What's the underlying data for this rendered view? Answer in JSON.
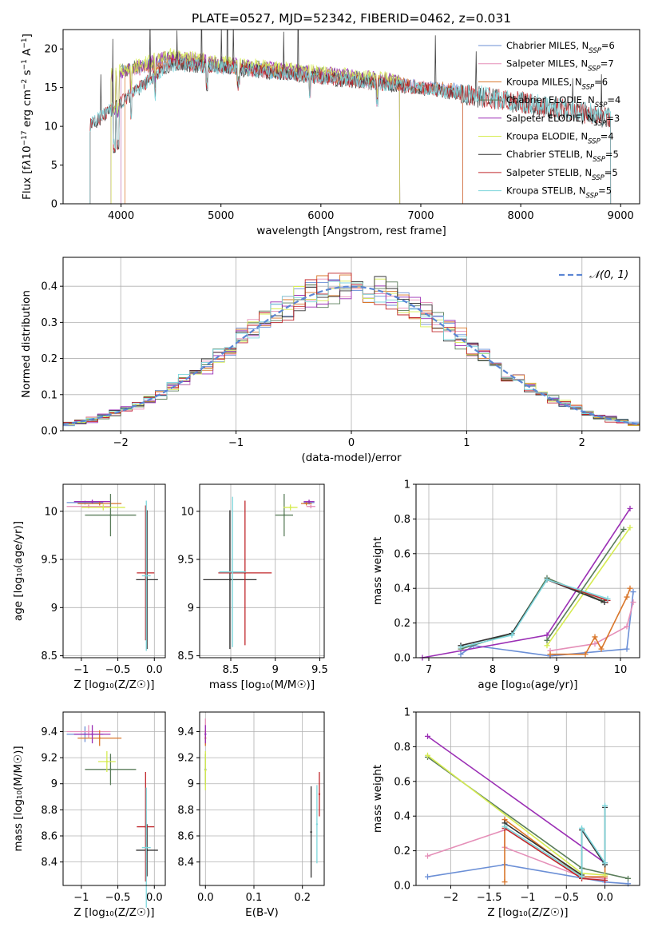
{
  "chart_data": [
    {
      "id": "spectrum",
      "type": "line",
      "title": "PLATE=0527, MJD=52342, FIBERID=0462, z=0.031",
      "xlabel": "wavelength [Angstrom, rest frame]",
      "ylabel_html": "Flux [f<tspan font-style='italic'>λ</tspan>10<tspan baseline-shift='super' font-size='9'>−17</tspan> erg cm<tspan baseline-shift='super' font-size='9'>−2</tspan> s<tspan baseline-shift='super' font-size='9'>−1</tspan> A<tspan baseline-shift='super' font-size='9'>−1</tspan>]",
      "xlim": [
        3420,
        9190
      ],
      "ylim": [
        0,
        22.5
      ],
      "xticks": [
        4000,
        5000,
        6000,
        7000,
        8000,
        9000
      ],
      "yticks": [
        0,
        5,
        10,
        15,
        20
      ],
      "grid": false,
      "legend_position": "top-right",
      "series": [
        {
          "name": "Chabrier MILES",
          "nssp": "6",
          "color": "#6b8fd6",
          "x": [
            4000,
            4500,
            5000,
            6000,
            7000,
            7420
          ],
          "y": [
            17.2,
            18.4,
            17.8,
            16.5,
            15.2,
            14.6
          ]
        },
        {
          "name": "Salpeter MILES",
          "nssp": "7",
          "color": "#e58fb8",
          "x": [
            4000,
            4500,
            5000,
            6000,
            7000,
            7420
          ],
          "y": [
            17.0,
            18.3,
            17.7,
            16.4,
            15.1,
            14.5
          ]
        },
        {
          "name": "Kroupa MILES",
          "nssp": "6",
          "color": "#d9762a",
          "x": [
            4040,
            4500,
            5000,
            6000,
            7000,
            7420
          ],
          "y": [
            17.1,
            18.5,
            17.9,
            16.6,
            15.2,
            14.6
          ]
        },
        {
          "name": "Chabrier ELODIE",
          "nssp": "4",
          "color": "#5a7d5a",
          "x": [
            3900,
            4500,
            5000,
            6000,
            6790
          ],
          "y": [
            16.8,
            18.9,
            18.0,
            16.8,
            15.8
          ]
        },
        {
          "name": "Salpeter ELODIE",
          "nssp": "3",
          "color": "#9b2fb5",
          "x": [
            3900,
            4500,
            5000,
            6000,
            6790
          ],
          "y": [
            16.6,
            19.1,
            18.2,
            16.9,
            15.9
          ]
        },
        {
          "name": "Kroupa ELODIE",
          "nssp": "4",
          "color": "#d6ec52",
          "x": [
            3900,
            4500,
            5000,
            6000,
            6790
          ],
          "y": [
            16.9,
            19.3,
            18.3,
            17.0,
            16.0
          ]
        },
        {
          "name": "Chabrier STELIB",
          "nssp": "5",
          "color": "#333333",
          "x": [
            3690,
            4500,
            5000,
            6000,
            7000,
            8000,
            8900
          ],
          "y": [
            10.0,
            18.0,
            17.6,
            16.2,
            14.9,
            13.0,
            11.0
          ]
        },
        {
          "name": "Salpeter STELIB",
          "nssp": "5",
          "color": "#c0262a",
          "x": [
            3690,
            4500,
            5000,
            6000,
            7000,
            8000,
            8900
          ],
          "y": [
            10.1,
            18.1,
            17.7,
            16.3,
            15.0,
            13.1,
            11.1
          ]
        },
        {
          "name": "Kroupa STELIB",
          "nssp": "5",
          "color": "#7dd6dc",
          "x": [
            3690,
            4500,
            5000,
            6000,
            7000,
            8000,
            8900
          ],
          "y": [
            10.2,
            18.0,
            17.6,
            16.3,
            15.0,
            13.2,
            11.2
          ]
        }
      ]
    },
    {
      "id": "residuals",
      "type": "line",
      "xlabel": "(data-model)/error",
      "ylabel": "Normed distribution",
      "xlim": [
        -2.5,
        2.5
      ],
      "ylim": [
        0,
        0.48
      ],
      "xticks": [
        -2,
        -1,
        0,
        1,
        2
      ],
      "yticks": [
        0.0,
        0.1,
        0.2,
        0.3,
        0.4
      ],
      "grid": true,
      "legend_position": "top-right",
      "reference": {
        "name": "𝒩(0, 1)",
        "color": "#5b86d4"
      },
      "bin_width": 0.1
    },
    {
      "id": "age_vs_Z",
      "type": "scatter",
      "xlabel": "Z [log₁₀(Z/Z☉)]",
      "ylabel": "age  [log₁₀(age/yr)]",
      "xlim": [
        -1.25,
        0.15
      ],
      "ylim": [
        8.48,
        10.28
      ],
      "xticks": [
        -1.0,
        -0.5,
        0.0
      ],
      "yticks": [
        8.5,
        9.0,
        9.5,
        10.0
      ],
      "grid": true,
      "points": [
        {
          "color": "#6b8fd6",
          "x": -0.95,
          "y": 10.09,
          "xerr": 0.25,
          "yerr": 0.02
        },
        {
          "color": "#e58fb8",
          "x": -0.9,
          "y": 10.05,
          "xerr": 0.3,
          "yerr": 0.02
        },
        {
          "color": "#d9762a",
          "x": -0.75,
          "y": 10.08,
          "xerr": 0.3,
          "yerr": 0.02
        },
        {
          "color": "#5a7d5a",
          "x": -0.6,
          "y": 9.96,
          "xerr": 0.35,
          "yerr": 0.22
        },
        {
          "color": "#9b2fb5",
          "x": -0.85,
          "y": 10.1,
          "xerr": 0.25,
          "yerr": 0.02
        },
        {
          "color": "#d6ec52",
          "x": -0.7,
          "y": 10.04,
          "xerr": 0.3,
          "yerr": 0.03
        },
        {
          "color": "#333333",
          "x": -0.1,
          "y": 9.29,
          "xerr": 0.15,
          "yerr": 0.72
        },
        {
          "color": "#c0262a",
          "x": -0.12,
          "y": 9.36,
          "xerr": 0.12,
          "yerr": 0.7
        },
        {
          "color": "#7dd6dc",
          "x": -0.11,
          "y": 9.33,
          "xerr": 0.06,
          "yerr": 0.78
        }
      ]
    },
    {
      "id": "age_vs_mass",
      "type": "scatter",
      "xlabel": "mass [log₁₀(M/M☉)]",
      "xlim": [
        8.15,
        9.55
      ],
      "ylim": [
        8.48,
        10.28
      ],
      "xticks": [
        8.5,
        9.0,
        9.5
      ],
      "yticks": [
        8.5,
        9.0,
        9.5,
        10.0
      ],
      "grid": true,
      "points": [
        {
          "color": "#6b8fd6",
          "x": 9.38,
          "y": 10.09,
          "xerr": 0.06,
          "yerr": 0.02
        },
        {
          "color": "#e58fb8",
          "x": 9.4,
          "y": 10.05,
          "xerr": 0.05,
          "yerr": 0.02
        },
        {
          "color": "#d9762a",
          "x": 9.35,
          "y": 10.08,
          "xerr": 0.06,
          "yerr": 0.02
        },
        {
          "color": "#5a7d5a",
          "x": 9.1,
          "y": 9.96,
          "xerr": 0.1,
          "yerr": 0.22
        },
        {
          "color": "#9b2fb5",
          "x": 9.38,
          "y": 10.1,
          "xerr": 0.06,
          "yerr": 0.02
        },
        {
          "color": "#d6ec52",
          "x": 9.17,
          "y": 10.04,
          "xerr": 0.08,
          "yerr": 0.03
        },
        {
          "color": "#333333",
          "x": 8.49,
          "y": 9.29,
          "xerr": 0.3,
          "yerr": 0.72
        },
        {
          "color": "#c0262a",
          "x": 8.66,
          "y": 9.36,
          "xerr": 0.3,
          "yerr": 0.75
        },
        {
          "color": "#7dd6dc",
          "x": 8.52,
          "y": 9.37,
          "xerr": 0.15,
          "yerr": 0.78
        }
      ]
    },
    {
      "id": "massweight_vs_age",
      "type": "line",
      "xlabel": "age  [log₁₀(age/yr)]",
      "ylabel": "mass weight",
      "xlim": [
        6.8,
        10.3
      ],
      "ylim": [
        0,
        1.0
      ],
      "xticks": [
        7,
        8,
        9,
        10
      ],
      "yticks": [
        0.0,
        0.2,
        0.4,
        0.6,
        0.8,
        1.0
      ],
      "grid": true,
      "series": [
        {
          "color": "#6b8fd6",
          "x": [
            7.5,
            7.7,
            8.9,
            10.1,
            10.2
          ],
          "y": [
            0.02,
            0.07,
            0.01,
            0.05,
            0.38
          ]
        },
        {
          "color": "#e58fb8",
          "x": [
            8.9,
            9.6,
            10.1,
            10.2
          ],
          "y": [
            0.04,
            0.08,
            0.18,
            0.32
          ]
        },
        {
          "color": "#d9762a",
          "x": [
            8.9,
            9.45,
            9.6,
            9.7,
            10.1,
            10.15
          ],
          "y": [
            0.02,
            0.02,
            0.12,
            0.05,
            0.35,
            0.4
          ]
        },
        {
          "color": "#5a7d5a",
          "x": [
            7.5,
            8.3,
            8.85,
            9.7
          ],
          "y": [
            0.05,
            0.14,
            0.46,
            0.33
          ]
        },
        {
          "color": "#9b2fb5",
          "x": [
            6.9,
            8.85,
            10.15
          ],
          "y": [
            0.0,
            0.13,
            0.86
          ]
        },
        {
          "color": "#d6ec52",
          "x": [
            8.85,
            10.15
          ],
          "y": [
            0.07,
            0.75
          ]
        },
        {
          "color": "#333333",
          "x": [
            7.5,
            8.3,
            8.85,
            9.75
          ],
          "y": [
            0.07,
            0.14,
            0.45,
            0.32
          ]
        },
        {
          "color": "#c0262a",
          "x": [
            8.85,
            9.8
          ],
          "y": [
            0.45,
            0.33
          ]
        },
        {
          "color": "#7dd6dc",
          "x": [
            7.5,
            8.3,
            8.85,
            9.8
          ],
          "y": [
            0.06,
            0.13,
            0.45,
            0.34
          ]
        },
        {
          "color": "#5a7d5a",
          "x": [
            8.85,
            10.05
          ],
          "y": [
            0.1,
            0.74
          ]
        }
      ]
    },
    {
      "id": "mass_vs_Z",
      "type": "scatter",
      "xlabel": "Z [log₁₀(Z/Z☉)]",
      "ylabel": "mass [log₁₀(M/M☉)]",
      "xlim": [
        -1.25,
        0.15
      ],
      "ylim": [
        8.22,
        9.55
      ],
      "xticks": [
        -1.0,
        -0.5,
        0.0
      ],
      "yticks": [
        8.4,
        8.6,
        8.8,
        9.0,
        9.2,
        9.4
      ],
      "grid": true,
      "points": [
        {
          "color": "#6b8fd6",
          "x": -0.95,
          "y": 9.38,
          "xerr": 0.25,
          "yerr": 0.06
        },
        {
          "color": "#e58fb8",
          "x": -0.9,
          "y": 9.4,
          "xerr": 0.3,
          "yerr": 0.05
        },
        {
          "color": "#d9762a",
          "x": -0.75,
          "y": 9.35,
          "xerr": 0.3,
          "yerr": 0.06
        },
        {
          "color": "#5a7d5a",
          "x": -0.6,
          "y": 9.11,
          "xerr": 0.35,
          "yerr": 0.12
        },
        {
          "color": "#9b2fb5",
          "x": -0.85,
          "y": 9.38,
          "xerr": 0.25,
          "yerr": 0.07
        },
        {
          "color": "#d6ec52",
          "x": -0.65,
          "y": 9.17,
          "xerr": 0.12,
          "yerr": 0.08
        },
        {
          "color": "#333333",
          "x": -0.1,
          "y": 8.49,
          "xerr": 0.15,
          "yerr": 0.2
        },
        {
          "color": "#c0262a",
          "x": -0.12,
          "y": 8.67,
          "xerr": 0.12,
          "yerr": 0.42
        },
        {
          "color": "#7dd6dc",
          "x": -0.11,
          "y": 8.51,
          "xerr": 0.06,
          "yerr": 0.46
        }
      ]
    },
    {
      "id": "mass_vs_ebv",
      "type": "scatter",
      "xlabel": "E(B-V)",
      "xlim": [
        -0.012,
        0.245
      ],
      "ylim": [
        8.22,
        9.55
      ],
      "xticks": [
        0.0,
        0.1,
        0.2
      ],
      "yticks": [
        8.4,
        8.6,
        8.8,
        9.0,
        9.2,
        9.4
      ],
      "grid": true,
      "points": [
        {
          "color": "#6b8fd6",
          "x": 0.0,
          "y": 9.38,
          "xerr": 0,
          "yerr": 0.06
        },
        {
          "color": "#e58fb8",
          "x": 0.0,
          "y": 9.4,
          "xerr": 0,
          "yerr": 0.1
        },
        {
          "color": "#d9762a",
          "x": 0.0,
          "y": 9.35,
          "xerr": 0,
          "yerr": 0.06
        },
        {
          "color": "#5a7d5a",
          "x": 0.0,
          "y": 9.11,
          "xerr": 0,
          "yerr": 0.12
        },
        {
          "color": "#9b2fb5",
          "x": 0.0,
          "y": 9.38,
          "xerr": 0,
          "yerr": 0.07
        },
        {
          "color": "#d6ec52",
          "x": 0.0,
          "y": 9.1,
          "xerr": 0,
          "yerr": 0.15
        },
        {
          "color": "#333333",
          "x": 0.218,
          "y": 8.63,
          "xerr": 0,
          "yerr": 0.35
        },
        {
          "color": "#c0262a",
          "x": 0.235,
          "y": 8.92,
          "xerr": 0,
          "yerr": 0.17
        },
        {
          "color": "#7dd6dc",
          "x": 0.23,
          "y": 8.69,
          "xerr": 0,
          "yerr": 0.3
        }
      ]
    },
    {
      "id": "massweight_vs_Z",
      "type": "line",
      "xlabel": "Z [log₁₀(Z/Z☉)]",
      "ylabel": "mass weight",
      "xlim": [
        -2.45,
        0.45
      ],
      "ylim": [
        0,
        1.0
      ],
      "xticks": [
        -2.0,
        -1.5,
        -1.0,
        -0.5,
        0.0
      ],
      "yticks": [
        0.0,
        0.2,
        0.4,
        0.6,
        0.8,
        1.0
      ],
      "grid": true,
      "series": [
        {
          "color": "#6b8fd6",
          "x": [
            -2.3,
            -1.3,
            -1.3,
            0.0,
            0.3
          ],
          "y": [
            0.05,
            0.12,
            0.12,
            0.02,
            0.01
          ]
        },
        {
          "color": "#e58fb8",
          "x": [
            -2.3,
            -1.3,
            -1.3,
            -0.3,
            0.0
          ],
          "y": [
            0.17,
            0.32,
            0.22,
            0.05,
            0.04
          ]
        },
        {
          "color": "#d9762a",
          "x": [
            -1.3,
            -1.3,
            -0.3,
            0.0,
            0.0
          ],
          "y": [
            0.02,
            0.38,
            0.05,
            0.05,
            0.13
          ]
        },
        {
          "color": "#5a7d5a",
          "x": [
            -2.3,
            -0.3,
            0.3
          ],
          "y": [
            0.74,
            0.1,
            0.04
          ]
        },
        {
          "color": "#9b2fb5",
          "x": [
            -2.3,
            0.0
          ],
          "y": [
            0.86,
            0.13
          ]
        },
        {
          "color": "#d6ec52",
          "x": [
            -2.3,
            -0.3,
            0.0
          ],
          "y": [
            0.75,
            0.07,
            0.06
          ]
        },
        {
          "color": "#333333",
          "x": [
            -1.3,
            -0.3,
            -0.3,
            0.0,
            0.0
          ],
          "y": [
            0.36,
            0.06,
            0.32,
            0.12,
            0.45
          ]
        },
        {
          "color": "#c0262a",
          "x": [
            -1.3,
            -0.3,
            0.0
          ],
          "y": [
            0.33,
            0.04,
            0.03
          ]
        },
        {
          "color": "#7dd6dc",
          "x": [
            -1.3,
            -0.3,
            -0.3,
            0.0,
            0.0
          ],
          "y": [
            0.34,
            0.05,
            0.33,
            0.13,
            0.46
          ]
        }
      ]
    }
  ]
}
